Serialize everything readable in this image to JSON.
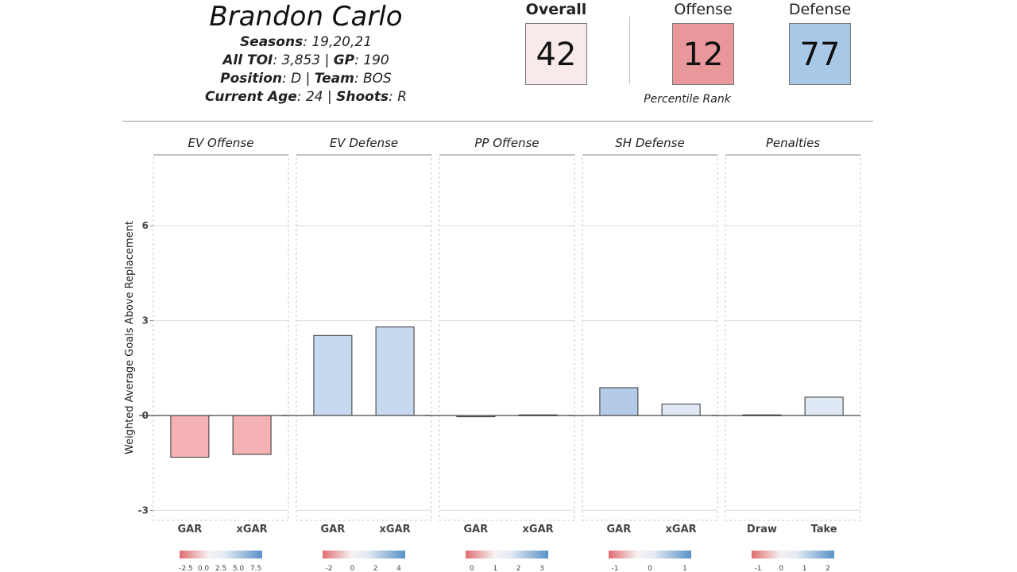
{
  "player": {
    "name": "Brandon Carlo",
    "seasons_label": "Seasons",
    "seasons": ": 19,20,21",
    "toi_label": "All TOI",
    "toi": ": 3,853 | ",
    "gp_label": "GP",
    "gp": ": 190",
    "position_label": "Position",
    "position": ": D | ",
    "team_label": "Team",
    "team": ": BOS",
    "age_label": "Current Age",
    "age": ": 24 | ",
    "shoots_label": "Shoots",
    "shoots": ": R"
  },
  "ratings": {
    "overall_label": "Overall",
    "overall": "42",
    "overall_color": "#f8eaea",
    "offense_label": "Offense",
    "offense": "12",
    "offense_color": "#e8979b",
    "defense_label": "Defense",
    "defense": "77",
    "defense_color": "#a8c8e8",
    "percentile_label": "Percentile Rank"
  },
  "chart_data": {
    "type": "bar",
    "ylabel": "Weighted Average Goals Above Replacement",
    "ylim": [
      -3.2,
      8
    ],
    "yticks": [
      -3,
      0,
      3,
      6
    ],
    "grid": true,
    "colors": {
      "negative": "#f4b2b4",
      "positive": "#c6d9ef",
      "positive_strong": "#b3cbe8",
      "positive_light": "#dfe8f5"
    },
    "panels": [
      {
        "title": "EV Offense",
        "categories": [
          "GAR",
          "xGAR"
        ],
        "values": [
          -1.32,
          -1.23
        ],
        "legend_ticks": [
          "-2.5",
          "0.0",
          "2.5",
          "5.0",
          "7.5"
        ]
      },
      {
        "title": "EV Defense",
        "categories": [
          "GAR",
          "xGAR"
        ],
        "values": [
          2.53,
          2.8
        ],
        "legend_ticks": [
          "-2",
          "0",
          "2",
          "4"
        ]
      },
      {
        "title": "PP Offense",
        "categories": [
          "GAR",
          "xGAR"
        ],
        "values": [
          -0.04,
          0.02
        ],
        "legend_ticks": [
          "0",
          "1",
          "2",
          "3"
        ]
      },
      {
        "title": "SH Defense",
        "categories": [
          "GAR",
          "xGAR"
        ],
        "values": [
          0.88,
          0.36
        ],
        "legend_ticks": [
          "-1",
          "0",
          "1"
        ]
      },
      {
        "title": "Penalties",
        "categories": [
          "Draw",
          "Take"
        ],
        "values": [
          0.02,
          0.58
        ],
        "legend_ticks": [
          "-1",
          "0",
          "1",
          "2"
        ]
      }
    ]
  }
}
